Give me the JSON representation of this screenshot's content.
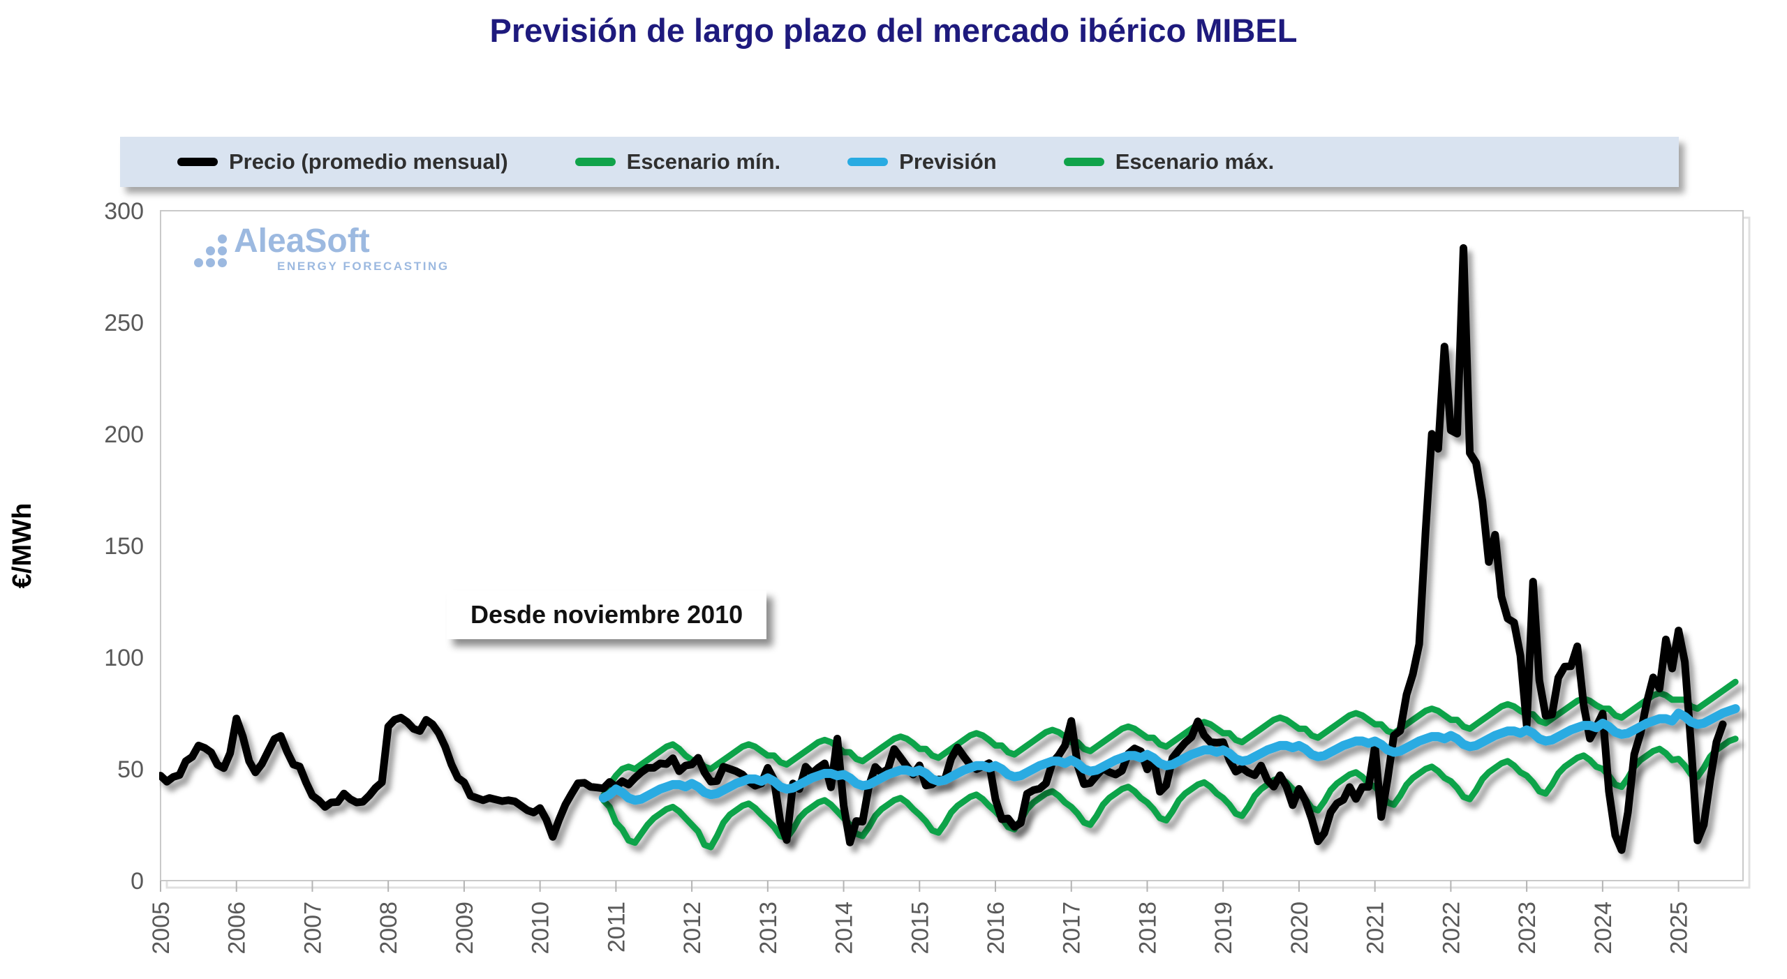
{
  "title": "Previsión de largo plazo del mercado ibérico MIBEL",
  "legend": {
    "items": [
      {
        "label": "Precio (promedio mensual)",
        "color": "#000000"
      },
      {
        "label": "Escenario mín.",
        "color": "#10a34a"
      },
      {
        "label": "Previsión",
        "color": "#29abe2"
      },
      {
        "label": "Escenario máx.",
        "color": "#10a34a"
      }
    ]
  },
  "watermark": {
    "brand": "AleaSoft",
    "tagline": "ENERGY FORECASTING"
  },
  "annotation": "Desde noviembre 2010",
  "chart_data": {
    "type": "line",
    "title": "Previsión de largo plazo del mercado ibérico MIBEL",
    "xlabel": "",
    "ylabel": "€/MWh",
    "ylim": [
      0,
      300
    ],
    "y_ticks": [
      0,
      50,
      100,
      150,
      200,
      250,
      300
    ],
    "x_ticks": [
      2005,
      2006,
      2007,
      2008,
      2009,
      2010,
      2011,
      2012,
      2013,
      2014,
      2015,
      2016,
      2017,
      2018,
      2019,
      2020,
      2021,
      2022,
      2023,
      2024,
      2025
    ],
    "x_range": [
      2005.0,
      2025.85
    ],
    "grid": false,
    "legend_position": "top",
    "units": "€/MWh",
    "series": [
      {
        "name": "Escenario mín.",
        "color": "#10a34a",
        "stroke_width": 9,
        "start": "2010-11",
        "values": [
          36,
          33,
          26,
          23,
          18,
          17,
          21,
          25,
          28,
          30,
          32,
          33,
          31,
          28,
          25,
          22,
          16,
          15,
          20,
          26,
          29.5,
          31.5,
          33.5,
          34.5,
          32.5,
          29.5,
          27,
          24,
          20,
          19,
          23,
          28,
          31,
          33,
          35,
          36,
          34,
          31,
          28,
          25,
          21,
          20,
          24,
          29,
          32,
          34,
          36,
          37,
          35,
          32,
          29.5,
          26.5,
          22.5,
          21.5,
          25.5,
          30.5,
          33.5,
          35.5,
          37.5,
          38.5,
          36.5,
          33.5,
          31,
          28,
          24,
          23,
          27,
          32,
          35,
          37,
          39,
          40,
          38,
          35,
          33,
          30,
          26,
          25,
          29,
          34,
          37,
          39,
          41,
          42,
          40,
          37,
          35,
          32,
          28,
          27,
          31,
          36,
          39,
          41,
          43,
          44,
          42,
          39,
          37,
          34,
          30,
          29,
          33,
          38,
          41,
          43,
          45,
          46,
          44,
          41,
          39.5,
          36.5,
          32.5,
          31.5,
          35.5,
          40.5,
          43.5,
          45.5,
          47.5,
          48.5,
          46.5,
          43.5,
          42,
          39,
          35,
          34,
          38,
          43,
          46,
          48,
          50,
          51,
          49,
          46,
          44.5,
          41.5,
          37.5,
          36.5,
          40.5,
          45.5,
          48.5,
          50.5,
          52.5,
          53.5,
          51.5,
          48.5,
          47,
          44,
          40,
          39,
          43,
          48,
          51,
          53,
          55,
          56,
          54,
          51,
          50,
          47,
          43,
          42,
          46,
          51,
          54,
          56,
          58,
          59,
          57,
          54,
          54.5,
          51.5,
          47.5,
          46.5,
          50.5,
          55.5,
          58.5,
          60.5,
          62.5,
          63.5
        ]
      },
      {
        "name": "Escenario máx.",
        "color": "#10a34a",
        "stroke_width": 9,
        "start": "2010-11",
        "values": [
          38,
          43,
          47,
          50,
          51,
          50,
          52,
          54,
          56,
          58,
          60,
          61,
          59,
          56,
          54,
          54,
          51,
          50,
          52,
          54,
          56,
          58,
          60,
          61,
          60,
          58,
          56,
          56,
          53,
          52,
          54,
          56,
          58,
          60,
          62,
          63,
          62,
          60,
          57.5,
          57.5,
          54.5,
          53.5,
          55.5,
          57.5,
          59.5,
          61.5,
          63.5,
          64.5,
          63.5,
          61.5,
          59,
          59,
          56,
          55,
          57,
          59,
          61,
          63,
          65,
          66,
          65,
          63,
          60.5,
          60.5,
          57.5,
          56.5,
          58.5,
          60.5,
          62.5,
          64.5,
          66.5,
          67.5,
          66.5,
          64.5,
          62,
          62,
          59,
          58,
          60,
          62,
          64,
          66,
          68,
          69,
          68,
          66,
          64,
          64,
          61,
          60,
          62,
          64,
          66,
          68,
          70,
          71,
          70,
          68,
          66,
          66,
          63,
          62,
          64,
          66,
          68,
          70,
          72,
          73,
          72,
          70,
          68,
          68,
          65,
          64,
          66,
          68,
          70,
          72,
          74,
          75,
          74,
          72,
          70,
          70,
          67,
          66,
          68,
          70,
          72,
          74,
          76,
          77,
          76,
          74,
          72,
          72,
          69,
          68,
          70,
          72,
          74,
          76,
          78,
          79,
          78,
          76,
          74.5,
          74.5,
          71.5,
          70.5,
          72.5,
          74.5,
          76.5,
          78.5,
          80.5,
          81.5,
          80.5,
          78.5,
          77,
          77,
          74,
          73,
          75,
          77,
          79,
          81,
          83,
          84,
          83,
          81,
          81,
          81,
          78,
          77,
          79,
          81,
          83,
          85,
          87,
          89
        ]
      },
      {
        "name": "Precio (promedio mensual)",
        "color": "#000000",
        "stroke_width": 11,
        "start": "2005-01",
        "values": [
          47,
          44.3,
          46.4,
          47.3,
          53.5,
          55.4,
          60.5,
          59.4,
          57.4,
          51.9,
          50.4,
          57.1,
          72.6,
          64.6,
          53.5,
          48.5,
          52.2,
          57.8,
          63.4,
          64.8,
          57.8,
          52,
          51.1,
          44,
          38,
          36,
          33,
          35,
          35.2,
          39,
          36.5,
          35,
          35.3,
          38.1,
          41.6,
          44,
          69,
          72,
          73,
          71,
          68,
          67,
          72,
          70,
          66,
          60,
          52,
          46,
          44,
          38,
          37,
          36,
          37,
          36.3,
          35.6,
          36,
          35.5,
          33.5,
          31.5,
          30.5,
          32.5,
          27.3,
          19.6,
          27.2,
          34,
          38.9,
          43.6,
          43.8,
          42,
          41.7,
          41.3,
          44.2,
          42,
          44.5,
          43,
          46,
          48.5,
          50.5,
          50.5,
          52.5,
          52.2,
          54.8,
          49,
          51.5,
          52,
          55,
          48.5,
          44.3,
          44.6,
          51,
          50,
          49,
          47.5,
          44.5,
          42.5,
          43.5,
          50.5,
          45.1,
          26,
          18.2,
          43.5,
          41,
          51,
          48,
          50.5,
          52.5,
          41.8,
          63.6,
          33.6,
          17.1,
          26.7,
          26.4,
          42.4,
          50.9,
          48.2,
          49.9,
          58.9,
          55.1,
          51.2,
          47.5,
          51.6,
          42.6,
          43.1,
          45.3,
          45.1,
          54.7,
          59.6,
          55.6,
          51.9,
          49.9,
          51.2,
          52.6,
          36.5,
          27.5,
          27.8,
          24.1,
          25.8,
          38.9,
          40.5,
          41.2,
          43.6,
          52.8,
          56.1,
          60.5,
          71.5,
          51.7,
          43.2,
          43.7,
          47.1,
          50.2,
          48.6,
          47.5,
          49.2,
          56.8,
          59.2,
          57.9,
          49.8,
          54.9,
          39.8,
          42.7,
          54.9,
          58.5,
          61.8,
          64.3,
          71.3,
          65.1,
          62,
          61.8,
          62,
          54,
          48.8,
          50.4,
          48.4,
          47.2,
          51.5,
          45,
          42.1,
          47.2,
          42.2,
          33.8,
          41.1,
          35.9,
          27.7,
          17.6,
          21.3,
          30.6,
          34.6,
          36.2,
          41.9,
          36.6,
          41.9,
          42,
          60.2,
          28.5,
          45.4,
          65,
          67.1,
          83.3,
          92.4,
          105.9,
          156.1,
          200.1,
          193.4,
          239.2,
          201.7,
          200.2,
          283.3,
          191.5,
          187.1,
          169.9,
          142.7,
          154.9,
          127.2,
          117.3,
          115.6,
          100.8,
          69.6,
          133.9,
          89.7,
          73.8,
          74.4,
          90.9,
          95.8,
          96,
          104.9,
          78.7,
          63.6,
          68.9,
          74.8,
          40,
          20.3,
          13.7,
          30.6,
          56.6,
          66,
          80,
          91,
          86,
          108,
          95,
          112,
          98,
          60,
          18,
          25,
          45,
          62,
          70
        ]
      },
      {
        "name": "Previsión",
        "color": "#29abe2",
        "stroke_width": 13,
        "start": "2010-11",
        "values": [
          37,
          38.5,
          41,
          39.5,
          37,
          36,
          36.5,
          38,
          39.5,
          41,
          42,
          43,
          43,
          42,
          43.5,
          42,
          39.5,
          38.5,
          39,
          40.5,
          42,
          43.5,
          44.5,
          45.5,
          45.5,
          44.5,
          46,
          44.5,
          42,
          41,
          41.5,
          43,
          44.5,
          46,
          47,
          48,
          48,
          47,
          47.5,
          46,
          43.5,
          42.5,
          43,
          44.5,
          46,
          47.5,
          48.5,
          49.5,
          49.5,
          48.5,
          49.5,
          48,
          45.5,
          44.5,
          45,
          46.5,
          48,
          49.5,
          50.5,
          51.5,
          51.5,
          50.5,
          51.5,
          50,
          47.5,
          46.5,
          47,
          48.5,
          50,
          51.5,
          52.5,
          53.5,
          53.5,
          52.5,
          54,
          52.5,
          50,
          49,
          49.5,
          51,
          52.5,
          54,
          55,
          56,
          56,
          55,
          56.5,
          55,
          52.5,
          51.5,
          52,
          53.5,
          55,
          56.5,
          57.5,
          58.5,
          58.5,
          57.5,
          58.5,
          57,
          54.5,
          53.5,
          54,
          55.5,
          57,
          58.5,
          59.5,
          60.5,
          60.5,
          59.5,
          60.5,
          59,
          56.5,
          55.5,
          56,
          57.5,
          59,
          60.5,
          61.5,
          62.5,
          62.5,
          61.5,
          62.5,
          61,
          58.5,
          57.5,
          58,
          59.5,
          61,
          62.5,
          63.5,
          64.5,
          64.5,
          63.5,
          65,
          63.5,
          61,
          60,
          60.5,
          62,
          63.5,
          65,
          66,
          67,
          67,
          66,
          67.5,
          66,
          63.5,
          62.5,
          63,
          64.5,
          66,
          67.5,
          68.5,
          69.5,
          69.5,
          68.5,
          70.5,
          69,
          66.5,
          65.5,
          66,
          67.5,
          69,
          70.5,
          71.5,
          72.5,
          72.5,
          71.5,
          75,
          73.5,
          71,
          70,
          70.5,
          72,
          73.5,
          75,
          76,
          77
        ]
      }
    ]
  }
}
